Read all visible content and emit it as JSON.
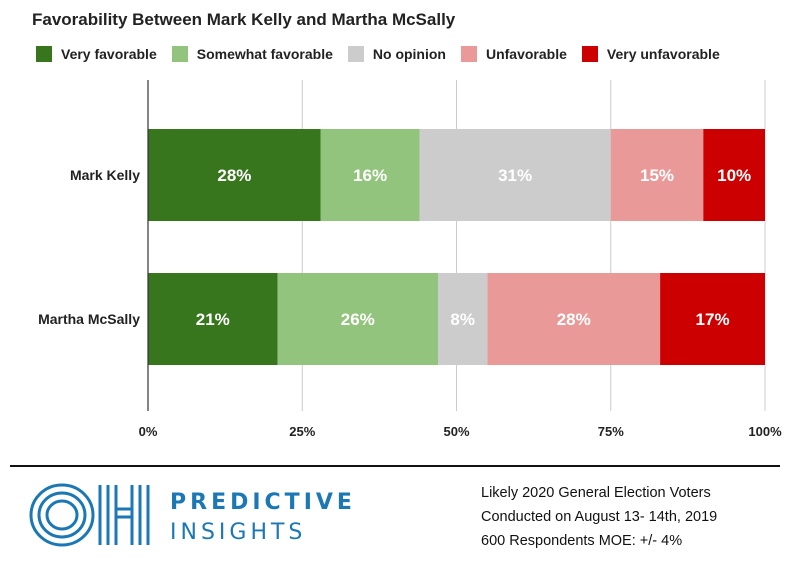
{
  "chart_data": {
    "type": "bar",
    "orientation": "horizontal",
    "stacked": true,
    "title": "Favorability Between Mark Kelly and Martha McSally",
    "categories": [
      "Mark Kelly",
      "Martha McSally"
    ],
    "series": [
      {
        "name": "Very favorable",
        "color": "#38761d",
        "values": [
          28,
          21
        ]
      },
      {
        "name": "Somewhat favorable",
        "color": "#93c47d",
        "values": [
          16,
          26
        ]
      },
      {
        "name": "No opinion",
        "color": "#cccccc",
        "values": [
          31,
          8
        ]
      },
      {
        "name": "Unfavorable",
        "color": "#ea9999",
        "values": [
          15,
          28
        ]
      },
      {
        "name": "Very unfavorable",
        "color": "#cc0000",
        "values": [
          10,
          17
        ]
      }
    ],
    "data_labels": [
      [
        "28%",
        "16%",
        "31%",
        "15%",
        "10%"
      ],
      [
        "21%",
        "26%",
        "8%",
        "28%",
        "17%"
      ]
    ],
    "x_ticks": [
      "0%",
      "25%",
      "50%",
      "75%",
      "100%"
    ],
    "xlim": [
      0,
      100
    ],
    "grid": true,
    "legend": "top"
  },
  "footer": {
    "logo_letters": "OH",
    "brand_line1": "PREDICTIVE",
    "brand_line2": "INSIGHTS",
    "note_line1": "Likely 2020 General Election Voters",
    "note_line2": "Conducted on August 13- 14th, 2019",
    "note_line3": "600 Respondents  MOE: +/- 4%"
  },
  "colors": {
    "brand": "#1b78b5"
  }
}
